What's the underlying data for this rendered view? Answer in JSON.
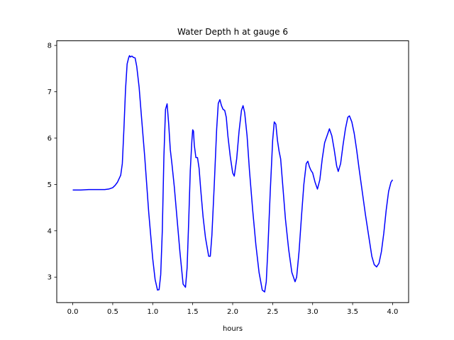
{
  "chart_data": {
    "type": "line",
    "title": "Water Depth h at gauge 6",
    "xlabel": "hours",
    "ylabel": "",
    "xlim": [
      -0.2,
      4.2
    ],
    "ylim": [
      2.45,
      8.1
    ],
    "xticks": [
      0.0,
      0.5,
      1.0,
      1.5,
      2.0,
      2.5,
      3.0,
      3.5,
      4.0
    ],
    "xtick_labels": [
      "0.0",
      "0.5",
      "1.0",
      "1.5",
      "2.0",
      "2.5",
      "3.0",
      "3.5",
      "4.0"
    ],
    "yticks": [
      3,
      4,
      5,
      6,
      7,
      8
    ],
    "ytick_labels": [
      "3",
      "4",
      "5",
      "6",
      "7",
      "8"
    ],
    "grid": false,
    "series": [
      {
        "color": "#0000ff",
        "x": [
          0.0,
          0.1,
          0.2,
          0.3,
          0.4,
          0.45,
          0.5,
          0.53,
          0.56,
          0.6,
          0.62,
          0.64,
          0.66,
          0.68,
          0.7,
          0.71,
          0.72,
          0.74,
          0.76,
          0.78,
          0.8,
          0.83,
          0.86,
          0.9,
          0.95,
          1.0,
          1.03,
          1.06,
          1.08,
          1.1,
          1.12,
          1.14,
          1.16,
          1.18,
          1.2,
          1.22,
          1.24,
          1.27,
          1.3,
          1.34,
          1.38,
          1.41,
          1.43,
          1.45,
          1.47,
          1.49,
          1.5,
          1.51,
          1.52,
          1.54,
          1.56,
          1.58,
          1.6,
          1.63,
          1.66,
          1.7,
          1.72,
          1.74,
          1.77,
          1.8,
          1.82,
          1.84,
          1.86,
          1.88,
          1.9,
          1.92,
          1.94,
          1.97,
          2.0,
          2.02,
          2.05,
          2.08,
          2.11,
          2.13,
          2.15,
          2.18,
          2.21,
          2.25,
          2.29,
          2.33,
          2.37,
          2.4,
          2.42,
          2.44,
          2.47,
          2.5,
          2.52,
          2.54,
          2.56,
          2.58,
          2.6,
          2.63,
          2.66,
          2.7,
          2.74,
          2.78,
          2.8,
          2.83,
          2.86,
          2.89,
          2.92,
          2.94,
          2.96,
          2.98,
          3.0,
          3.03,
          3.06,
          3.09,
          3.12,
          3.15,
          3.18,
          3.21,
          3.24,
          3.27,
          3.3,
          3.32,
          3.35,
          3.38,
          3.41,
          3.44,
          3.46,
          3.49,
          3.52,
          3.55,
          3.58,
          3.62,
          3.66,
          3.7,
          3.74,
          3.77,
          3.8,
          3.83,
          3.86,
          3.89,
          3.92,
          3.95,
          3.98,
          4.0
        ],
        "y": [
          4.88,
          4.88,
          4.89,
          4.89,
          4.89,
          4.9,
          4.93,
          4.98,
          5.05,
          5.2,
          5.45,
          6.2,
          7.05,
          7.6,
          7.74,
          7.78,
          7.75,
          7.77,
          7.74,
          7.73,
          7.55,
          7.1,
          6.45,
          5.6,
          4.4,
          3.4,
          2.95,
          2.72,
          2.73,
          3.05,
          4.0,
          5.6,
          6.62,
          6.74,
          6.3,
          5.75,
          5.45,
          4.95,
          4.35,
          3.55,
          2.85,
          2.78,
          3.2,
          4.2,
          5.3,
          5.95,
          6.18,
          6.15,
          5.85,
          5.58,
          5.58,
          5.35,
          4.9,
          4.3,
          3.85,
          3.45,
          3.45,
          3.9,
          5.0,
          6.2,
          6.75,
          6.83,
          6.7,
          6.62,
          6.6,
          6.45,
          6.05,
          5.6,
          5.25,
          5.18,
          5.55,
          6.15,
          6.6,
          6.7,
          6.55,
          6.05,
          5.3,
          4.45,
          3.7,
          3.1,
          2.72,
          2.68,
          2.9,
          3.6,
          4.85,
          5.95,
          6.35,
          6.3,
          5.95,
          5.72,
          5.55,
          4.9,
          4.25,
          3.6,
          3.1,
          2.9,
          3.0,
          3.55,
          4.3,
          5.0,
          5.45,
          5.5,
          5.38,
          5.3,
          5.25,
          5.05,
          4.9,
          5.1,
          5.55,
          5.9,
          6.05,
          6.2,
          6.05,
          5.75,
          5.4,
          5.28,
          5.45,
          5.85,
          6.2,
          6.45,
          6.48,
          6.35,
          6.1,
          5.75,
          5.35,
          4.85,
          4.35,
          3.9,
          3.45,
          3.27,
          3.22,
          3.3,
          3.55,
          3.95,
          4.45,
          4.85,
          5.05,
          5.1
        ]
      }
    ]
  }
}
